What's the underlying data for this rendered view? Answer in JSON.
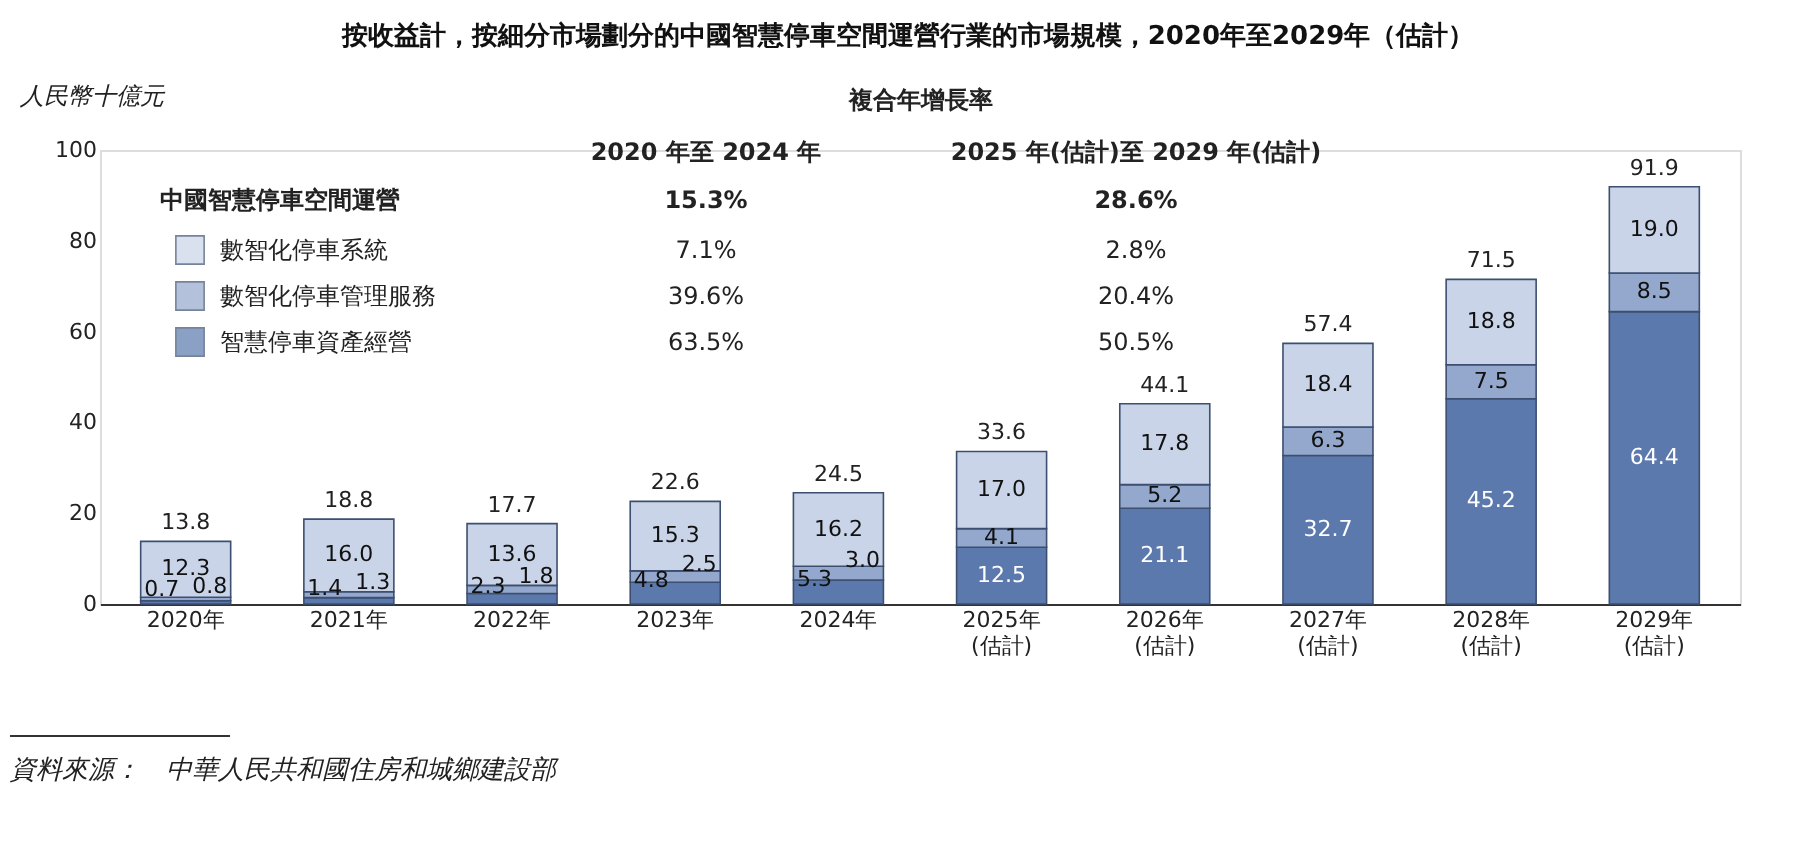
{
  "chart_data": {
    "type": "bar",
    "stacked": true,
    "title": "按收益計，按細分市場劃分的中國智慧停車空間運營行業的市場規模，2020年至2029年（估計）",
    "ylabel": "人民幣十億元",
    "legend_title": "中國智慧停車空間運營",
    "categories": [
      "2020年",
      "2021年",
      "2022年",
      "2023年",
      "2024年",
      "2025年\n(估計)",
      "2026年\n(估計)",
      "2027年\n(估計)",
      "2028年\n(估計)",
      "2029年\n(估計)"
    ],
    "series": [
      {
        "name": "智慧停車資產經營",
        "color": "#5b79ad",
        "values": [
          0.7,
          1.4,
          2.3,
          4.8,
          5.3,
          12.5,
          21.1,
          32.7,
          45.2,
          64.4
        ],
        "value_labels": [
          "0.7",
          "1.4",
          "2.3",
          "4.8",
          "5.3",
          "12.5",
          "21.1",
          "32.7",
          "45.2",
          "64.4"
        ]
      },
      {
        "name": "數智化停車管理服務",
        "color": "#93a8cc",
        "values": [
          0.8,
          1.3,
          1.8,
          2.5,
          3.0,
          4.1,
          5.2,
          6.3,
          7.5,
          8.5
        ],
        "value_labels": [
          "0.8",
          "1.3",
          "1.8",
          "2.5",
          "3.0",
          "4.1",
          "5.2",
          "6.3",
          "7.5",
          "8.5"
        ]
      },
      {
        "name": "數智化停車系統",
        "color": "#c9d4e8",
        "values": [
          12.3,
          16.0,
          13.6,
          15.3,
          16.2,
          17.0,
          17.8,
          18.4,
          18.8,
          19.0
        ],
        "value_labels": [
          "12.3",
          "16.0",
          "13.6",
          "15.3",
          "16.2",
          "17.0",
          "17.8",
          "18.4",
          "18.8",
          "19.0"
        ]
      }
    ],
    "totals": [
      "13.8",
      "18.8",
      "17.7",
      "22.6",
      "24.5",
      "33.6",
      "44.1",
      "57.4",
      "71.5",
      "91.9"
    ],
    "ylim": [
      0,
      100
    ],
    "yticks": [
      0,
      20,
      40,
      60,
      80,
      100
    ],
    "grid": false,
    "legend": "top left",
    "annotations": [
      "複合年增長率",
      "2020 年至 2024 年",
      "2025 年(估計)至 2029 年(估計)",
      "15.3%",
      "28.6%",
      "7.1%",
      "2.8%",
      "39.6%",
      "20.4%",
      "63.5%",
      "50.5%",
      "資料來源：　中華人民共和國住房和城鄉建設部"
    ]
  }
}
